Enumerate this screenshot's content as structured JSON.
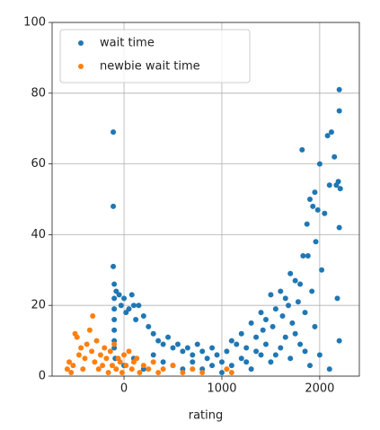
{
  "chart_data": {
    "type": "scatter",
    "xlabel": "rating",
    "xlim": [
      -735,
      2405
    ],
    "ylim": [
      0,
      100
    ],
    "xticks": [
      0,
      1000,
      2000
    ],
    "yticks": [
      0,
      20,
      40,
      60,
      80,
      100
    ],
    "grid": true,
    "legend": "upper left",
    "series": [
      {
        "name": "wait time",
        "color": "#1f77b4",
        "x": [
          -110,
          -110,
          -110,
          -100,
          -100,
          -100,
          -100,
          -100,
          -100,
          -100,
          -90,
          -80,
          -50,
          -30,
          0,
          20,
          50,
          80,
          100,
          120,
          150,
          200,
          250,
          300,
          350,
          400,
          450,
          500,
          550,
          600,
          650,
          700,
          750,
          800,
          850,
          900,
          950,
          1000,
          1050,
          1100,
          1150,
          1200,
          1250,
          1300,
          1350,
          1400,
          1420,
          1450,
          1500,
          1520,
          1550,
          1600,
          1620,
          1650,
          1680,
          1700,
          1720,
          1750,
          1780,
          1800,
          1820,
          1830,
          1850,
          1870,
          1880,
          1900,
          1920,
          1930,
          1950,
          1960,
          1980,
          2000,
          2020,
          2050,
          2080,
          2100,
          2120,
          2150,
          2170,
          2190,
          2200,
          2200,
          2210,
          2200,
          2180,
          2200,
          0,
          100,
          200,
          300,
          400,
          500,
          600,
          700,
          800,
          900,
          1000,
          1100,
          1200,
          1300,
          1400,
          1500,
          1600,
          1700,
          1800,
          1900,
          2000,
          2100,
          1250,
          1350,
          1450,
          1550,
          1650,
          1750,
          1850,
          1950
        ],
        "y": [
          69,
          48,
          31,
          26,
          22,
          19,
          16,
          13,
          10,
          8,
          5,
          24,
          23,
          20,
          22,
          18,
          19,
          23,
          20,
          16,
          20,
          17,
          14,
          12,
          10,
          9,
          11,
          8,
          9,
          7,
          8,
          6,
          9,
          7,
          5,
          8,
          6,
          4,
          7,
          10,
          9,
          12,
          8,
          15,
          11,
          18,
          13,
          16,
          23,
          14,
          19,
          24,
          17,
          22,
          20,
          29,
          15,
          27,
          21,
          26,
          64,
          34,
          18,
          43,
          34,
          50,
          24,
          48,
          52,
          38,
          47,
          60,
          30,
          46,
          68,
          54,
          69,
          62,
          54,
          55,
          81,
          75,
          53,
          42,
          22,
          10,
          3,
          5,
          2,
          6,
          4,
          3,
          2,
          4,
          2,
          3,
          1,
          3,
          5,
          2,
          6,
          4,
          8,
          5,
          9,
          3,
          6,
          2,
          4,
          7,
          9,
          6,
          11,
          12,
          7,
          14
        ]
      },
      {
        "name": "newbie wait time",
        "color": "#ff7f0e",
        "x": [
          -580,
          -560,
          -540,
          -520,
          -500,
          -480,
          -460,
          -440,
          -420,
          -400,
          -380,
          -350,
          -330,
          -320,
          -300,
          -280,
          -260,
          -240,
          -220,
          -200,
          -180,
          -160,
          -140,
          -120,
          -100,
          -80,
          -60,
          -40,
          -20,
          0,
          20,
          50,
          80,
          100,
          130,
          160,
          200,
          250,
          300,
          350,
          400,
          500,
          600,
          700,
          800,
          1050,
          1100
        ],
        "y": [
          2,
          4,
          1,
          3,
          12,
          11,
          6,
          8,
          2,
          5,
          9,
          13,
          7,
          17,
          4,
          10,
          2,
          6,
          3,
          8,
          5,
          1,
          7,
          3,
          9,
          2,
          5,
          4,
          1,
          6,
          3,
          7,
          2,
          4,
          5,
          1,
          3,
          2,
          4,
          1,
          2,
          3,
          1,
          2,
          1,
          2,
          1
        ]
      }
    ]
  }
}
